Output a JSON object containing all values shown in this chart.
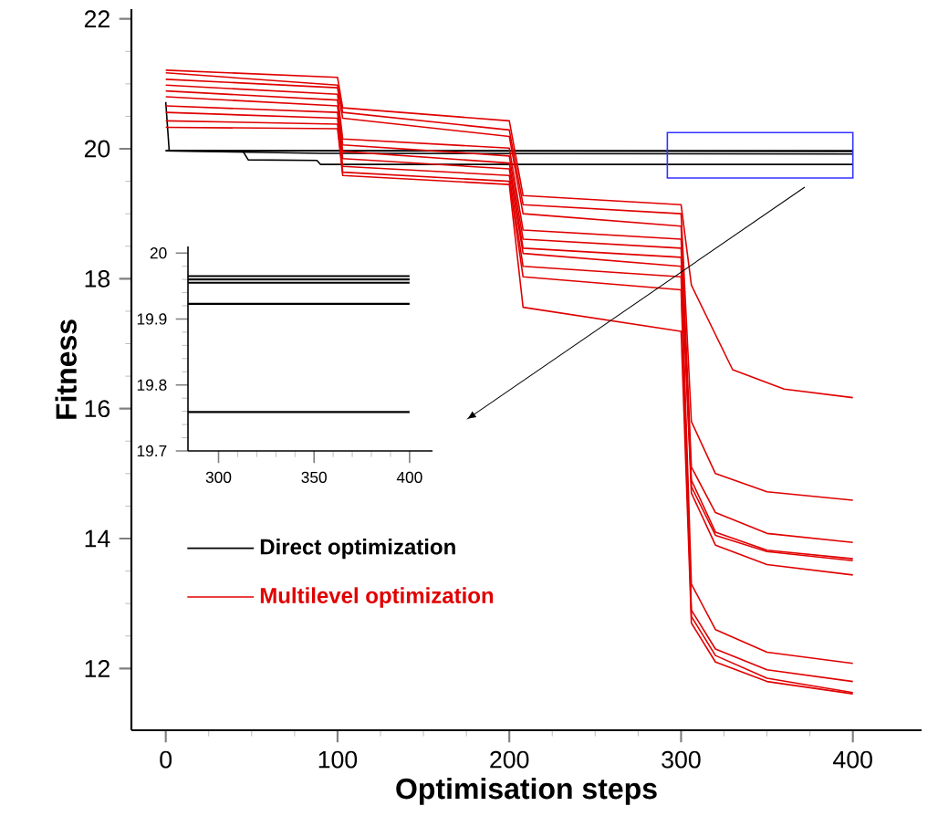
{
  "chart_data": [
    {
      "type": "line",
      "xlabel": "Optimisation steps",
      "ylabel": "Fitness",
      "xlim": [
        -20,
        440
      ],
      "ylim": [
        11.05,
        22.15
      ],
      "xticks": [
        0,
        100,
        200,
        300,
        400
      ],
      "yticks": [
        12,
        14,
        16,
        18,
        20,
        22
      ],
      "legend": "left",
      "series": [
        {
          "name": "Direct optimization",
          "color": "#000000",
          "x": [
            0,
            2,
            400
          ],
          "values": [
            20.72,
            19.97,
            19.97
          ]
        },
        {
          "color": "#000000",
          "x": [
            0,
            400
          ],
          "values": [
            19.97,
            19.96
          ]
        },
        {
          "color": "#000000",
          "x": [
            0,
            40,
            90,
            400
          ],
          "values": [
            19.97,
            19.95,
            19.93,
            19.92
          ]
        },
        {
          "color": "#000000",
          "x": [
            0,
            45,
            48,
            88,
            90,
            400
          ],
          "values": [
            19.97,
            19.96,
            19.83,
            19.82,
            19.76,
            19.76
          ]
        },
        {
          "name": "Multilevel optimization",
          "color": "#e00000",
          "x": [
            0,
            100,
            103,
            200,
            208,
            300,
            306,
            330,
            360,
            400
          ],
          "values": [
            21.21,
            21.1,
            20.63,
            20.43,
            19.28,
            19.14,
            17.9,
            16.6,
            16.3,
            16.17
          ]
        },
        {
          "color": "#e00000",
          "x": [
            0,
            100,
            103,
            200,
            208,
            300,
            306,
            320,
            350,
            400
          ],
          "values": [
            21.17,
            20.98,
            20.56,
            20.29,
            19.14,
            19.0,
            15.8,
            15.0,
            14.72,
            14.59
          ]
        },
        {
          "color": "#e00000",
          "x": [
            0,
            100,
            103,
            200,
            208,
            300,
            306,
            320,
            350,
            400
          ],
          "values": [
            21.07,
            20.94,
            20.47,
            20.19,
            19.0,
            18.81,
            15.1,
            14.4,
            14.08,
            13.94
          ]
        },
        {
          "color": "#e00000",
          "x": [
            0,
            100,
            103,
            200,
            208,
            300,
            306,
            320,
            350,
            400
          ],
          "values": [
            20.98,
            20.84,
            20.15,
            20.01,
            18.75,
            18.61,
            14.9,
            14.1,
            13.82,
            13.69
          ]
        },
        {
          "color": "#e00000",
          "x": [
            0,
            100,
            103,
            200,
            208,
            300,
            306,
            320,
            350,
            400
          ],
          "values": [
            20.89,
            20.75,
            20.06,
            19.89,
            18.61,
            18.47,
            14.8,
            14.05,
            13.8,
            13.66
          ]
        },
        {
          "color": "#e00000",
          "x": [
            0,
            100,
            103,
            200,
            208,
            300,
            306,
            320,
            350,
            400
          ],
          "values": [
            20.8,
            20.66,
            19.96,
            19.78,
            18.47,
            18.33,
            14.7,
            13.9,
            13.6,
            13.44
          ]
        },
        {
          "color": "#e00000",
          "x": [
            0,
            100,
            103,
            200,
            208,
            300,
            306,
            320,
            350,
            400
          ],
          "values": [
            20.66,
            20.56,
            19.85,
            19.69,
            18.39,
            18.19,
            13.3,
            12.6,
            12.25,
            12.08
          ]
        },
        {
          "color": "#e00000",
          "x": [
            0,
            100,
            103,
            200,
            208,
            300,
            306,
            320,
            350,
            400
          ],
          "values": [
            20.56,
            20.47,
            19.73,
            19.59,
            18.19,
            18.03,
            12.9,
            12.3,
            11.98,
            11.8
          ]
        },
        {
          "color": "#e00000",
          "x": [
            0,
            100,
            103,
            200,
            208,
            300,
            306,
            320,
            350,
            400
          ],
          "values": [
            20.43,
            20.38,
            19.64,
            19.5,
            18.03,
            17.83,
            12.8,
            12.2,
            11.85,
            11.63
          ]
        },
        {
          "color": "#e00000",
          "x": [
            0,
            100,
            103,
            200,
            208,
            300,
            306,
            320,
            350,
            400
          ],
          "values": [
            20.33,
            20.31,
            19.59,
            19.45,
            17.56,
            17.19,
            12.7,
            12.1,
            11.8,
            11.61
          ]
        }
      ]
    },
    {
      "type": "line",
      "xlim": [
        284,
        412
      ],
      "ylim": [
        19.7,
        20.01
      ],
      "xticks": [
        300,
        350,
        400
      ],
      "yticks": [
        19.7,
        19.8,
        19.9,
        20
      ],
      "series": [
        {
          "color": "#000000",
          "x": [
            284,
            400
          ],
          "values": [
            19.965,
            19.965
          ]
        },
        {
          "color": "#000000",
          "x": [
            284,
            400
          ],
          "values": [
            19.96,
            19.96
          ]
        },
        {
          "color": "#000000",
          "x": [
            284,
            400
          ],
          "values": [
            19.955,
            19.955
          ]
        },
        {
          "color": "#000000",
          "x": [
            284,
            400
          ],
          "values": [
            19.923,
            19.923
          ]
        },
        {
          "color": "#000000",
          "x": [
            284,
            400
          ],
          "values": [
            19.759,
            19.759
          ]
        }
      ]
    }
  ]
}
